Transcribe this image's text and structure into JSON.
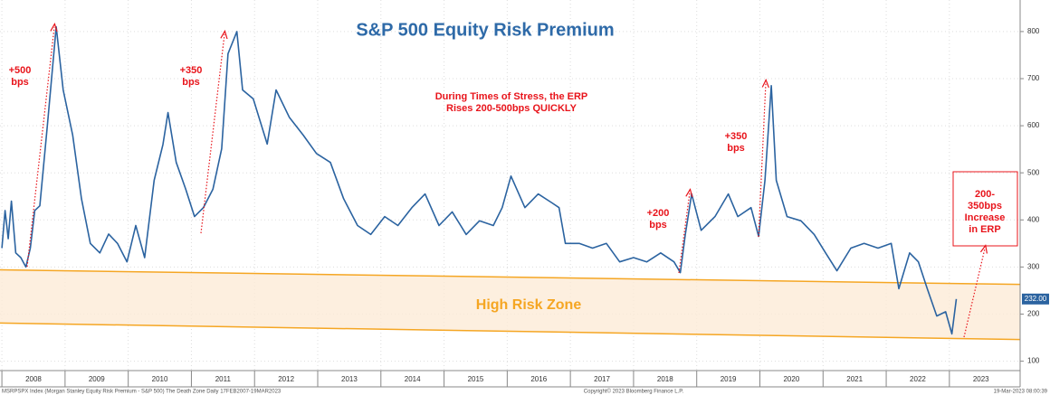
{
  "chart_data": {
    "type": "line",
    "title": "S&P 500 Equity Risk Premium",
    "x": [
      2008.0,
      2008.05,
      2008.1,
      2008.15,
      2008.22,
      2008.3,
      2008.38,
      2008.45,
      2008.52,
      2008.6,
      2008.72,
      2008.86,
      2008.97,
      2009.12,
      2009.26,
      2009.4,
      2009.55,
      2009.69,
      2009.83,
      2009.98,
      2010.12,
      2010.26,
      2010.41,
      2010.55,
      2010.63,
      2010.76,
      2010.91,
      2011.05,
      2011.19,
      2011.34,
      2011.48,
      2011.58,
      2011.72,
      2011.81,
      2011.98,
      2012.2,
      2012.34,
      2012.55,
      2012.77,
      2012.98,
      2013.2,
      2013.41,
      2013.63,
      2013.84,
      2014.06,
      2014.27,
      2014.49,
      2014.7,
      2014.92,
      2015.13,
      2015.35,
      2015.56,
      2015.78,
      2015.92,
      2016.06,
      2016.28,
      2016.49,
      2016.71,
      2016.82,
      2016.92,
      2017.14,
      2017.35,
      2017.57,
      2017.78,
      2018.0,
      2018.21,
      2018.43,
      2018.64,
      2018.74,
      2018.82,
      2018.92,
      2019.07,
      2019.29,
      2019.5,
      2019.65,
      2019.86,
      2019.98,
      2020.08,
      2020.18,
      2020.26,
      2020.43,
      2020.65,
      2020.86,
      2021.04,
      2021.22,
      2021.44,
      2021.65,
      2021.87,
      2022.08,
      2022.2,
      2022.37,
      2022.51,
      2022.65,
      2022.8,
      2022.94,
      2023.04,
      2023.11
    ],
    "series": [
      {
        "name": "MSRPSPX Index",
        "color": "#2b63a0",
        "values": [
          340,
          420,
          360,
          440,
          330,
          320,
          300,
          340,
          420,
          430,
          600,
          810,
          676,
          580,
          445,
          350,
          330,
          370,
          350,
          311,
          388,
          320,
          484,
          560,
          628,
          522,
          465,
          407,
          426,
          465,
          551,
          753,
          800,
          676,
          657,
          561,
          676,
          618,
          580,
          541,
          522,
          445,
          388,
          369,
          407,
          388,
          426,
          455,
          388,
          417,
          369,
          398,
          388,
          426,
          493,
          426,
          455,
          436,
          426,
          350,
          350,
          340,
          350,
          311,
          320,
          311,
          330,
          311,
          288,
          369,
          455,
          378,
          407,
          455,
          407,
          426,
          365,
          484,
          685,
          484,
          407,
          398,
          369,
          330,
          292,
          340,
          350,
          340,
          350,
          254,
          330,
          311,
          254,
          196,
          205,
          158,
          232
        ]
      }
    ],
    "xlim": [
      2007.97,
      2024.12
    ],
    "xticks": [
      2008,
      2009,
      2010,
      2011,
      2012,
      2013,
      2014,
      2015,
      2016,
      2017,
      2018,
      2019,
      2020,
      2021,
      2022,
      2023
    ],
    "ylim": [
      80,
      867
    ],
    "yticks": [
      100,
      200,
      300,
      400,
      500,
      600,
      700,
      800
    ],
    "grid": true,
    "last_price": {
      "value": 232,
      "label": "232.00"
    },
    "zone": {
      "label": "High Risk Zone",
      "upper": [
        294,
        263
      ],
      "lower": [
        181,
        146
      ]
    },
    "annotations": [
      {
        "lines": [
          "+500",
          "bps"
        ]
      },
      {
        "lines": [
          "+350",
          "bps"
        ]
      },
      {
        "lines": [
          "During Times of Stress, the ERP",
          "Rises 200-500bps QUICKLY"
        ]
      },
      {
        "lines": [
          "+350",
          "bps"
        ]
      },
      {
        "lines": [
          "+200",
          "bps"
        ]
      },
      {
        "lines": [
          "200-",
          "350bps",
          "Increase",
          "in ERP"
        ]
      }
    ],
    "footer": {
      "left": "MSRPSPX Index (Morgan Stanley Equity Risk Premium - S&P 500) The Death Zone  Daily 17FEB2007-19MAR2023",
      "center": "Copyright© 2023 Bloomberg Finance L.P.",
      "right": "19-Mar-2023 08:00:39"
    }
  }
}
